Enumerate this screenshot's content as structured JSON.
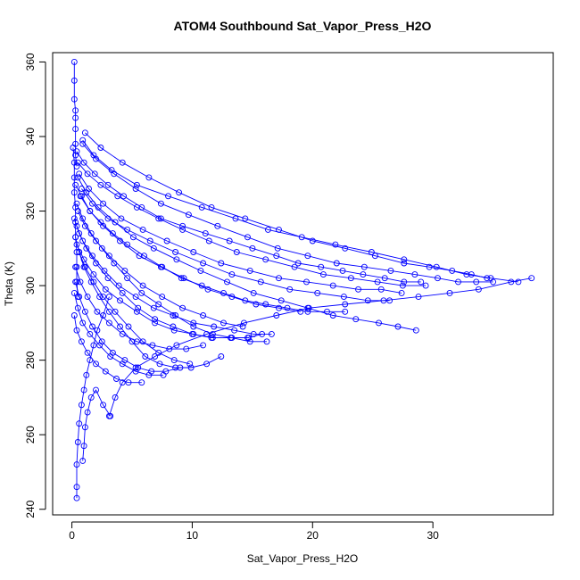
{
  "chart_data": {
    "type": "scatter",
    "title": "ATOM4 Southbound Sat_Vapor_Press_H2O",
    "xlabel": "Sat_Vapor_Press_H2O",
    "ylabel": "Theta (K)",
    "xlim": [
      -1.6,
      40
    ],
    "ylim": [
      238.5,
      362.5
    ],
    "x_ticks": [
      0,
      10,
      20,
      30
    ],
    "y_ticks": [
      240,
      260,
      280,
      300,
      320,
      340,
      360
    ],
    "grid": false,
    "legend": "none",
    "mode": "lines+points",
    "color": "#0000ff",
    "series": [
      {
        "x": [
          0.4,
          0.4,
          0.4,
          0.5,
          0.6,
          0.8,
          1.0,
          1.2,
          1.5,
          1.8,
          2.1,
          2.6,
          3.1
        ],
        "y": [
          243,
          246,
          252,
          258,
          263,
          268,
          272,
          276,
          280,
          284,
          288,
          292,
          297
        ]
      },
      {
        "x": [
          0.9,
          1.0,
          1.1,
          1.3,
          1.6,
          2.0,
          2.6,
          3.2
        ],
        "y": [
          253,
          257,
          262,
          266,
          270,
          272,
          268,
          265
        ]
      },
      {
        "x": [
          3.1,
          3.6,
          4.2,
          5.3,
          6.9,
          8.7,
          11.2,
          14.3,
          17.0,
          19.7,
          22.7,
          25.9,
          28.8,
          31.4,
          33.8,
          36.5,
          38.2
        ],
        "y": [
          265,
          270,
          274,
          278,
          281,
          284,
          287,
          290,
          292,
          294,
          295,
          296,
          297,
          298,
          299,
          301,
          302
        ]
      },
      {
        "x": [
          0.2,
          0.2,
          0.2,
          0.3,
          0.3,
          0.3,
          0.3,
          0.3,
          0.4
        ],
        "y": [
          360,
          355,
          350,
          347,
          345,
          342,
          338,
          335,
          332
        ]
      },
      {
        "x": [
          0.9,
          1.8,
          3.3,
          5.4,
          8.0,
          10.8,
          13.6,
          16.3,
          19.1,
          21.9,
          24.9,
          27.6,
          30.3,
          32.8,
          34.8,
          37.1
        ],
        "y": [
          339,
          335,
          331,
          327,
          324,
          321,
          318,
          315,
          313,
          311,
          309,
          307,
          305,
          303,
          302,
          301
        ]
      },
      {
        "x": [
          0.5,
          1.2,
          2.2,
          3.6,
          5.1,
          6.8,
          8.7,
          10.7,
          12.9,
          15.1,
          17.4,
          19.6,
          21.7,
          23.6,
          25.5,
          27.1,
          28.6
        ],
        "y": [
          329,
          325,
          321,
          317,
          313,
          310,
          307,
          304,
          301,
          298,
          296,
          294,
          292,
          291,
          290,
          289,
          288
        ]
      },
      {
        "x": [
          0.4,
          0.9,
          1.6,
          2.5,
          3.5,
          4.6,
          5.8,
          7.2,
          8.6,
          10.1,
          11.7,
          13.3,
          14.8,
          16.2
        ],
        "y": [
          322,
          318,
          314,
          310,
          306,
          302,
          298,
          295,
          292,
          289,
          287,
          286,
          285,
          285
        ]
      },
      {
        "x": [
          0.3,
          0.6,
          1.0,
          1.6,
          2.3,
          3.1,
          4.0,
          5.0,
          6.1,
          7.3,
          8.6,
          9.9,
          11.2,
          12.4
        ],
        "y": [
          313,
          309,
          305,
          301,
          297,
          293,
          289,
          285,
          281,
          279,
          278,
          278,
          279,
          281
        ]
      },
      {
        "x": [
          0.6,
          1.1,
          1.8,
          2.6,
          3.6,
          4.7,
          5.9,
          7.2,
          8.5,
          9.8
        ],
        "y": [
          309,
          305,
          301,
          297,
          293,
          289,
          285,
          282,
          280,
          279
        ]
      },
      {
        "x": [
          0.4,
          1.0,
          1.9,
          3.0,
          4.3,
          5.8,
          7.4,
          9.2,
          11.1,
          13.1,
          15.0,
          17.0,
          18.8,
          20.7,
          22.5,
          24.2,
          26.0,
          27.6,
          29.0
        ],
        "y": [
          336,
          333,
          330,
          327,
          324,
          321,
          318,
          316,
          314,
          312,
          310,
          308,
          306,
          305,
          304,
          303,
          302,
          301,
          301
        ]
      },
      {
        "x": [
          0.3,
          0.8,
          1.5,
          2.4,
          3.4,
          4.6,
          6.0,
          7.5,
          9.1,
          10.8,
          12.6,
          14.4,
          16.1,
          17.9,
          19.6,
          21.2,
          22.7
        ],
        "y": [
          327,
          324,
          320,
          317,
          314,
          311,
          308,
          305,
          302,
          300,
          298,
          296,
          295,
          294,
          293,
          293,
          293
        ]
      },
      {
        "x": [
          0.2,
          0.6,
          1.2,
          2.0,
          3.0,
          4.2,
          5.5,
          6.9,
          8.4,
          10.0,
          11.6,
          13.2,
          14.7
        ],
        "y": [
          318,
          314,
          310,
          306,
          302,
          298,
          294,
          291,
          289,
          287,
          286,
          286,
          286
        ]
      },
      {
        "x": [
          0.5,
          1.3,
          2.4,
          3.8,
          5.4,
          7.2,
          9.2,
          11.4,
          13.7,
          16.1,
          18.5,
          20.9,
          23.2,
          25.4,
          27.5,
          29.4
        ],
        "y": [
          333,
          330,
          327,
          324,
          321,
          318,
          315,
          312,
          309,
          307,
          305,
          303,
          302,
          301,
          300,
          300
        ]
      },
      {
        "x": [
          0.3,
          0.7,
          1.3,
          2.1,
          3.1,
          4.2,
          5.4,
          6.7,
          8.1,
          9.5,
          10.9
        ],
        "y": [
          305,
          301,
          297,
          293,
          290,
          287,
          285,
          284,
          283,
          283,
          284
        ]
      },
      {
        "x": [
          0.7,
          1.5,
          2.6,
          4.0,
          5.6,
          7.4,
          9.3,
          11.3,
          13.3,
          15.3,
          17.2,
          19.0
        ],
        "y": [
          324,
          320,
          316,
          312,
          308,
          305,
          302,
          299,
          297,
          295,
          294,
          293
        ]
      },
      {
        "x": [
          0.2,
          0.5,
          0.9,
          1.5,
          2.3,
          3.2,
          4.2,
          5.3,
          6.4,
          7.6
        ],
        "y": [
          298,
          294,
          290,
          287,
          284,
          281,
          279,
          277,
          276,
          276
        ]
      },
      {
        "x": [
          0.9,
          2.0,
          3.5,
          5.3,
          7.4,
          9.7,
          12.1,
          14.6,
          17.1,
          19.6,
          22.0,
          24.3,
          26.5,
          28.5,
          30.4,
          32.1,
          33.6,
          35.0
        ],
        "y": [
          338,
          334,
          330,
          326,
          322,
          319,
          316,
          313,
          310,
          308,
          306,
          305,
          304,
          303,
          302,
          301,
          301,
          301
        ]
      },
      {
        "x": [
          0.4,
          0.9,
          1.7,
          2.7,
          3.9,
          5.3,
          6.8,
          8.4,
          10.1,
          11.8,
          13.5,
          15.1,
          16.6
        ],
        "y": [
          316,
          312,
          308,
          304,
          300,
          297,
          294,
          292,
          290,
          289,
          288,
          287,
          287
        ]
      },
      {
        "x": [
          0.3,
          0.6,
          1.1,
          1.7,
          2.5,
          3.4,
          4.4,
          5.5,
          6.6,
          7.8,
          9.0
        ],
        "y": [
          301,
          297,
          293,
          289,
          285,
          282,
          280,
          278,
          277,
          277,
          278
        ]
      },
      {
        "x": [
          0.6,
          1.4,
          2.6,
          4.1,
          5.9,
          7.9,
          10.1,
          12.4,
          14.8,
          17.2,
          19.5,
          21.7,
          23.8,
          25.7,
          27.4
        ],
        "y": [
          330,
          326,
          322,
          318,
          315,
          312,
          309,
          306,
          304,
          302,
          301,
          300,
          299,
          299,
          298
        ]
      },
      {
        "x": [
          0.2,
          0.4,
          0.8,
          1.3,
          2.0,
          2.8,
          3.7,
          4.7,
          5.8
        ],
        "y": [
          292,
          288,
          285,
          282,
          279,
          277,
          275,
          274,
          274
        ]
      },
      {
        "x": [
          1.1,
          2.4,
          4.2,
          6.4,
          8.9,
          11.6,
          14.4,
          17.2,
          20.0,
          22.7,
          25.2,
          27.6,
          29.7,
          31.6,
          33.2,
          34.5
        ],
        "y": [
          341,
          337,
          333,
          329,
          325,
          321,
          318,
          315,
          312,
          310,
          308,
          306,
          305,
          304,
          303,
          302
        ]
      },
      {
        "x": [
          0.5,
          1.1,
          2.0,
          3.1,
          4.4,
          5.9,
          7.5,
          9.2,
          10.9,
          12.6,
          14.2
        ],
        "y": [
          320,
          316,
          312,
          308,
          304,
          300,
          297,
          294,
          292,
          290,
          289
        ]
      },
      {
        "x": [
          0.4,
          1.0,
          1.8,
          2.8,
          4.0,
          5.4,
          6.9,
          8.5,
          10.1,
          11.7,
          13.2,
          14.6,
          15.8
        ],
        "y": [
          311,
          307,
          303,
          299,
          296,
          293,
          290,
          288,
          287,
          286,
          286,
          286,
          287
        ]
      },
      {
        "x": [
          0.8,
          1.7,
          3.0,
          4.6,
          6.5,
          8.6,
          10.9,
          13.3,
          15.7,
          18.1,
          20.4,
          22.6,
          24.6,
          26.4
        ],
        "y": [
          326,
          322,
          318,
          315,
          312,
          309,
          306,
          303,
          301,
          299,
          298,
          297,
          296,
          296
        ]
      },
      {
        "x": [
          0.1,
          0.2,
          0.2,
          0.2,
          0.3,
          0.3,
          0.3,
          0.4,
          0.4,
          0.4,
          0.5
        ],
        "y": [
          337,
          333,
          329,
          325,
          321,
          317,
          313,
          309,
          305,
          301,
          297
        ]
      }
    ]
  }
}
